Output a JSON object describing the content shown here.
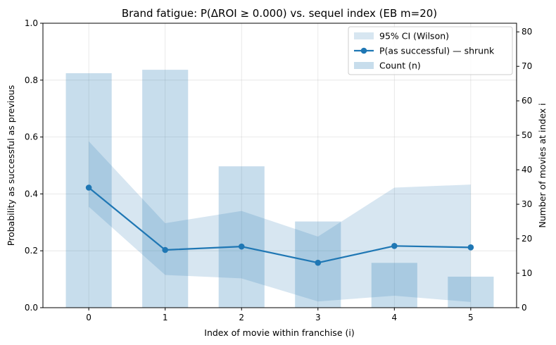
{
  "chart_data": {
    "type": "bar+line",
    "title": "Brand fatigue: P(ΔROI ≥ 0.000) vs. sequel index  (EB m=20)",
    "xlabel": "Index of movie within franchise (i)",
    "ylabel_left": "Probability as successful as previous",
    "ylabel_right": "Number of movies at index i",
    "x": [
      0,
      1,
      2,
      3,
      4,
      5
    ],
    "x_tick_labels": [
      "0",
      "1",
      "2",
      "3",
      "4",
      "5"
    ],
    "ylim_left": [
      0,
      1.0
    ],
    "y_left_ticks": [
      "0.0",
      "0.2",
      "0.4",
      "0.6",
      "0.8",
      "1.0"
    ],
    "ylim_right": [
      0,
      82.5
    ],
    "y_right_ticks": [
      "0",
      "10",
      "20",
      "30",
      "40",
      "50",
      "60",
      "70",
      "80"
    ],
    "grid": true,
    "legend_position": "top-right",
    "series": [
      {
        "name": "95% CI (Wilson)",
        "kind": "band",
        "axis": "left",
        "lower": [
          0.355,
          0.115,
          0.103,
          0.022,
          0.042,
          0.02
        ],
        "upper": [
          0.585,
          0.297,
          0.34,
          0.25,
          0.422,
          0.433
        ],
        "color": "#1f77b4",
        "opacity": 0.18
      },
      {
        "name": "P(as successful) — shrunk",
        "kind": "line",
        "axis": "left",
        "values": [
          0.422,
          0.203,
          0.215,
          0.158,
          0.217,
          0.212
        ],
        "color": "#1f77b4"
      },
      {
        "name": "Count (n)",
        "kind": "bar",
        "axis": "right",
        "values": [
          68,
          69,
          41,
          25,
          13,
          9
        ],
        "color": "#1f77b4",
        "opacity": 0.25
      }
    ]
  }
}
